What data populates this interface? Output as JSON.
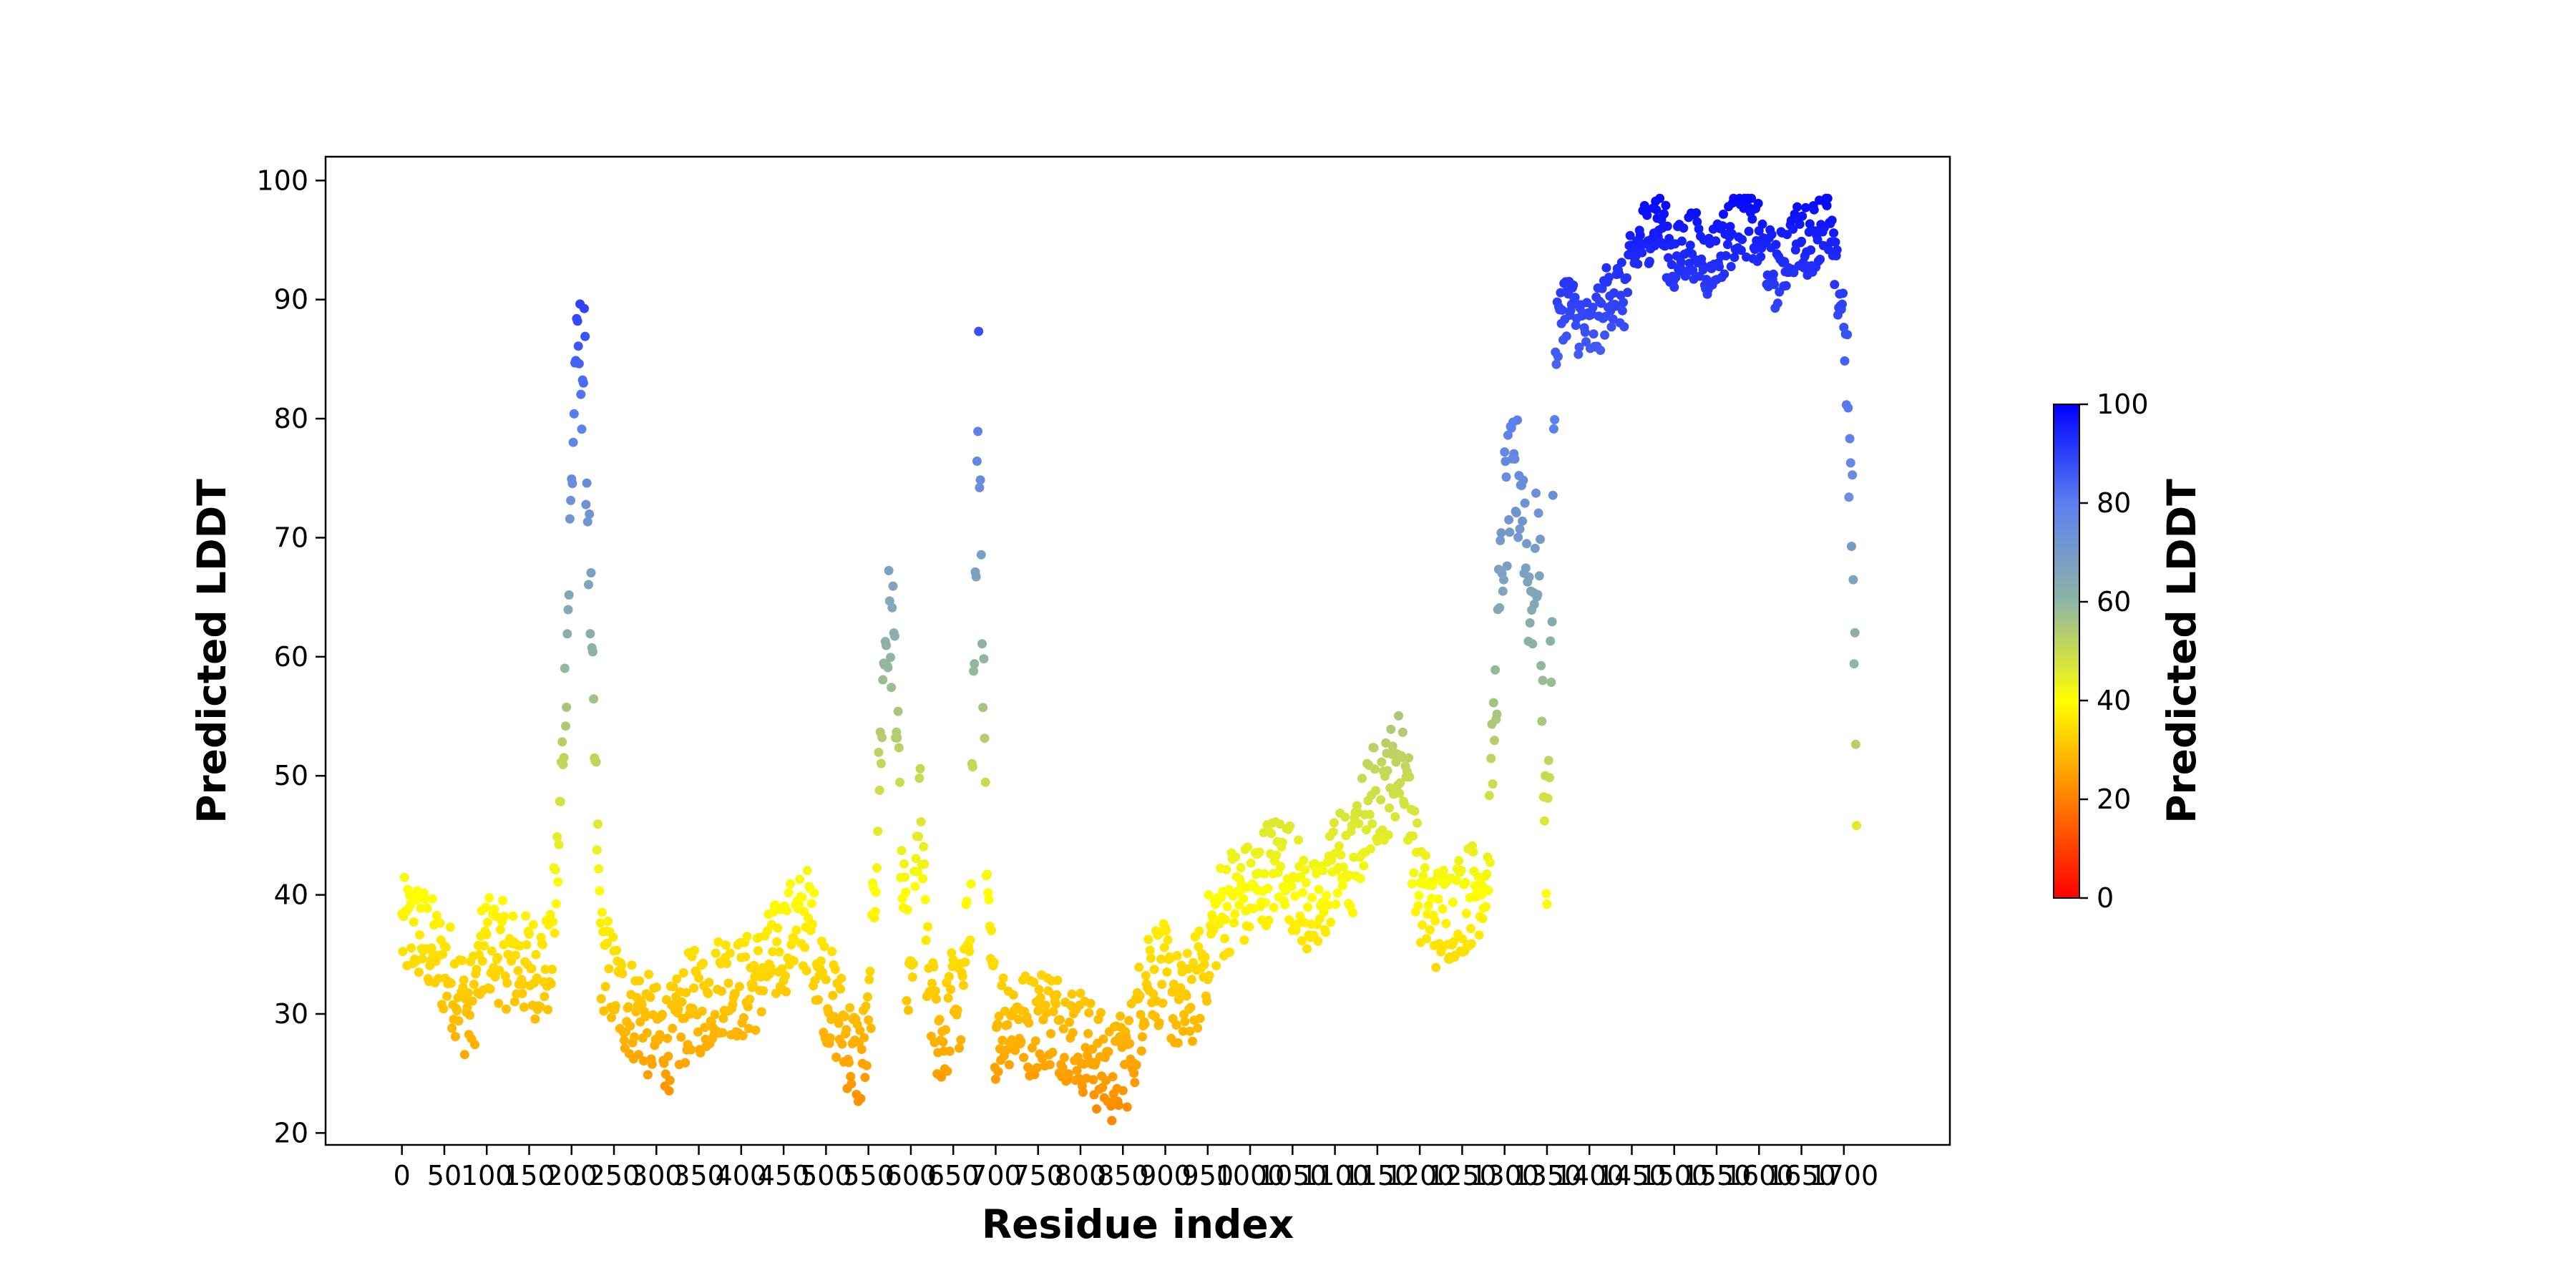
{
  "chart_data": {
    "type": "scatter",
    "title": "",
    "xlabel": "Residue index",
    "ylabel": "Predicted LDDT",
    "xlim": [
      -90,
      1825
    ],
    "ylim": [
      19,
      102
    ],
    "xticks": [
      0,
      50,
      100,
      150,
      200,
      250,
      300,
      350,
      400,
      450,
      500,
      550,
      600,
      650,
      700,
      750,
      800,
      850,
      900,
      950,
      1000,
      1050,
      1100,
      1150,
      1200,
      1250,
      1300,
      1350,
      1400,
      1450,
      1500,
      1550,
      1600,
      1650,
      1700
    ],
    "xtick_labels": [
      "0",
      "50",
      "100",
      "150",
      "200",
      "250",
      "300",
      "350",
      "400",
      "450",
      "500",
      "550",
      "600",
      "650",
      "700",
      "750",
      "800",
      "850",
      "900",
      "950",
      "1000",
      "1050",
      "1100",
      "1150",
      "1200",
      "1250",
      "1300",
      "1350",
      "1400",
      "1450",
      "1500",
      "1550",
      "1600",
      "1650",
      "1700"
    ],
    "yticks": [
      20,
      30,
      40,
      50,
      60,
      70,
      80,
      90,
      100
    ],
    "ytick_labels": [
      "20",
      "30",
      "40",
      "50",
      "60",
      "70",
      "80",
      "90",
      "100"
    ],
    "grid": false,
    "colormap": {
      "label": "Predicted LDDT",
      "range": [
        0,
        100
      ],
      "ticks": [
        0,
        20,
        40,
        60,
        80,
        100
      ],
      "tick_labels": [
        "0",
        "20",
        "40",
        "60",
        "80",
        "100"
      ],
      "stops": [
        {
          "value": 0,
          "color": "#ff0000"
        },
        {
          "value": 40,
          "color": "#ffff00"
        },
        {
          "value": 60,
          "color": "#8fb4a4"
        },
        {
          "value": 80,
          "color": "#5b7ff0"
        },
        {
          "value": 100,
          "color": "#0000ff"
        }
      ]
    },
    "profile": {
      "x": [
        0,
        20,
        40,
        60,
        80,
        100,
        120,
        140,
        160,
        175,
        185,
        195,
        205,
        215,
        225,
        235,
        260,
        280,
        300,
        320,
        340,
        360,
        380,
        400,
        420,
        440,
        460,
        480,
        500,
        520,
        530,
        540,
        550,
        560,
        570,
        580,
        590,
        600,
        610,
        620,
        630,
        640,
        650,
        660,
        670,
        680,
        690,
        700,
        710,
        720,
        740,
        760,
        780,
        800,
        820,
        840,
        860,
        880,
        900,
        920,
        940,
        960,
        980,
        1000,
        1020,
        1040,
        1060,
        1080,
        1100,
        1120,
        1140,
        1160,
        1180,
        1200,
        1220,
        1240,
        1260,
        1280,
        1290,
        1300,
        1310,
        1320,
        1330,
        1340,
        1350,
        1360,
        1370,
        1380,
        1390,
        1400,
        1410,
        1420,
        1430,
        1440,
        1450,
        1460,
        1480,
        1500,
        1520,
        1540,
        1560,
        1580,
        1600,
        1620,
        1640,
        1660,
        1680,
        1690,
        1700,
        1710,
        1715
      ],
      "y": [
        37,
        37,
        35,
        33,
        30,
        36,
        35,
        34,
        34,
        34,
        44,
        62,
        86,
        84,
        56,
        35,
        31,
        30,
        28,
        28,
        31,
        31,
        33,
        32,
        33,
        35,
        37,
        38,
        32,
        29,
        27,
        26,
        28,
        45,
        62,
        62,
        40,
        31,
        48,
        33,
        29,
        28,
        32,
        30,
        40,
        82,
        38,
        29,
        30,
        30,
        29,
        30,
        29,
        28,
        26,
        25,
        27,
        34,
        33,
        30,
        33,
        38,
        40,
        40,
        42,
        43,
        40,
        38,
        43,
        42,
        48,
        49,
        52,
        40,
        38,
        39,
        40,
        42,
        58,
        72,
        74,
        75,
        64,
        70,
        40,
        86,
        90,
        89,
        88,
        87,
        88,
        90,
        91,
        90,
        93,
        95,
        97,
        93,
        95,
        93,
        95,
        97,
        95,
        92,
        95,
        95,
        97,
        92,
        89,
        70,
        50
      ]
    }
  }
}
